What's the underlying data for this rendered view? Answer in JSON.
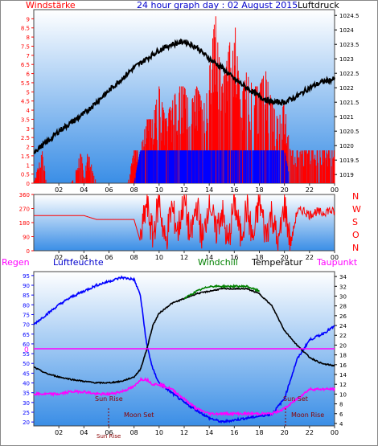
{
  "header": {
    "left_label": "Windstärke",
    "title": "24 hour graph day : 02 August 2015",
    "right_label": "Luftdruck",
    "left_color": "#ff0000",
    "title_color": "#0000cc",
    "right_color": "#000000"
  },
  "colors": {
    "panel_top": "#ffffff",
    "panel_bottom": "#3a8ee6",
    "pressure": "#000000",
    "gust": "#ff0000",
    "wind": "#0000ff",
    "winddir": "#ff0000",
    "humidity": "#0000ff",
    "temperature": "#000000",
    "windchill": "#008000",
    "dewpoint": "#ff00ff",
    "rain": "#ff00ff"
  },
  "x_ticks": [
    "02",
    "04",
    "06",
    "08",
    "10",
    "12",
    "14",
    "16",
    "18",
    "20",
    "22",
    "00"
  ],
  "dir_labels": [
    "N",
    "W",
    "S",
    "O",
    "N"
  ],
  "legend3": {
    "regen": "Regen",
    "luftfeuchte": "Luftfeuchte",
    "windchill": "Windchill",
    "temperatur": "Temperatur",
    "taupunkt": "Taupunkt"
  },
  "annotations": {
    "sun_rise": "Sun Rise",
    "sun_set": "Sun Set",
    "moon_set": "Moon Set",
    "moon_rise": "Moon Rise",
    "sun_rise_bottom": "Sun Rise",
    "rain_zero": "0"
  },
  "chart_data": [
    {
      "type": "line",
      "title": "24 hour graph day : 02 August 2015",
      "x_unit": "hour of day",
      "xlim": [
        0,
        24
      ],
      "y_left": {
        "label": "Windstärke",
        "ticks": [
          "0",
          "0.5",
          "1",
          "1.5",
          "2",
          "2.5",
          "3",
          "3.5",
          "4",
          "4.5",
          "5",
          "5.5",
          "6",
          "6.5",
          "7",
          "7.5",
          "8",
          "8.5",
          "9"
        ],
        "ylim": [
          0,
          9.5
        ]
      },
      "y_right": {
        "label": "Luftdruck",
        "ticks": [
          "1019",
          "1019.5",
          "1020",
          "1020.5",
          "1021",
          "1021.5",
          "1022",
          "1022.5",
          "1023",
          "1023.5",
          "1024",
          "1024.5"
        ],
        "ylim": [
          1018.7,
          1024.7
        ]
      },
      "series": [
        {
          "name": "Luftdruck",
          "axis": "right",
          "x": [
            0,
            1,
            2,
            3,
            4,
            5,
            6,
            7,
            8,
            9,
            10,
            11,
            12,
            13,
            14,
            15,
            16,
            17,
            18,
            19,
            20,
            21,
            22,
            23,
            24
          ],
          "values": [
            1019.8,
            1020.1,
            1020.5,
            1020.8,
            1021.1,
            1021.5,
            1021.9,
            1022.3,
            1022.7,
            1023.0,
            1023.3,
            1023.5,
            1023.6,
            1023.4,
            1023.0,
            1022.7,
            1022.3,
            1022.0,
            1021.7,
            1021.5,
            1021.5,
            1021.7,
            1022.0,
            1022.2,
            1022.3
          ]
        },
        {
          "name": "Windstärke Böen",
          "axis": "left",
          "style": "bars",
          "x": [
            0,
            0.7,
            1,
            3,
            3.8,
            4,
            4.3,
            5,
            5.5,
            7,
            7.5,
            8,
            8.5,
            9,
            9.5,
            10,
            10.5,
            11,
            11.5,
            12,
            12.5,
            13,
            13.5,
            14,
            14.5,
            15,
            15.5,
            16,
            16.5,
            17,
            17.5,
            18,
            18.5,
            19,
            19.5,
            20,
            20.5,
            21,
            21.5,
            22,
            22.5,
            23,
            23.5
          ],
          "values": [
            0,
            1.8,
            0,
            0,
            1.8,
            0,
            1.8,
            0,
            0,
            0,
            0,
            1.8,
            1.8,
            3.5,
            3.5,
            5.3,
            3.5,
            4.4,
            5.3,
            5.3,
            4.4,
            5.3,
            4.4,
            6.2,
            9.3,
            5.3,
            7.1,
            9.3,
            4.4,
            6.2,
            5.3,
            5.3,
            6.2,
            4.4,
            3.5,
            4.4,
            1.8,
            1.8,
            1.8,
            1.8,
            1.8,
            1.8,
            1.8
          ]
        },
        {
          "name": "Windstärke",
          "axis": "left",
          "style": "bars",
          "x": [
            8,
            8.5,
            9,
            9.5,
            10,
            10.5,
            11,
            11.5,
            12,
            12.5,
            13,
            13.5,
            14,
            14.5,
            15,
            15.5,
            16,
            16.5,
            17,
            17.5,
            18,
            18.5,
            19,
            19.5,
            20,
            20.5
          ],
          "values": [
            0,
            1.8,
            1.8,
            1.8,
            1.8,
            1.8,
            1.8,
            1.8,
            1.8,
            1.8,
            1.8,
            1.8,
            1.8,
            1.8,
            1.8,
            1.8,
            1.8,
            1.8,
            1.8,
            1.8,
            1.8,
            1.8,
            1.8,
            1.8,
            1.8,
            0
          ]
        }
      ]
    },
    {
      "type": "line",
      "title": "",
      "xlim": [
        0,
        24
      ],
      "y_left": {
        "label": "",
        "ticks": [
          "0",
          "90",
          "180",
          "270",
          "360"
        ],
        "ylim": [
          0,
          360
        ]
      },
      "series": [
        {
          "name": "Windrichtung",
          "x": [
            0,
            1,
            2,
            3,
            4,
            5,
            6,
            7,
            8,
            8.5,
            9,
            9.5,
            10,
            10.5,
            11,
            11.5,
            12,
            12.5,
            13,
            13.5,
            14,
            14.5,
            15,
            15.5,
            16,
            16.5,
            17,
            17.5,
            18,
            18.5,
            19,
            19.5,
            20,
            20.5,
            21,
            21.5,
            22,
            22.5,
            23,
            23.5,
            24
          ],
          "values": [
            225,
            225,
            225,
            225,
            225,
            200,
            200,
            200,
            200,
            60,
            300,
            90,
            330,
            40,
            280,
            120,
            340,
            70,
            300,
            50,
            350,
            110,
            260,
            30,
            320,
            90,
            280,
            60,
            330,
            100,
            250,
            20,
            300,
            40,
            250,
            260,
            230,
            250,
            240,
            260,
            245
          ]
        }
      ]
    },
    {
      "type": "line",
      "title": "",
      "xlim": [
        0,
        24
      ],
      "y_left": {
        "label": "Luftfeuchte",
        "ticks": [
          "20",
          "25",
          "30",
          "35",
          "40",
          "45",
          "50",
          "55",
          "60",
          "65",
          "70",
          "75",
          "80",
          "85",
          "90",
          "95"
        ],
        "ylim": [
          18,
          97
        ]
      },
      "y_right": {
        "label": "Temperatur",
        "ticks": [
          "4",
          "6",
          "8",
          "10",
          "12",
          "14",
          "16",
          "18",
          "20",
          "22",
          "24",
          "26",
          "28",
          "30",
          "32",
          "34"
        ],
        "ylim": [
          3.5,
          35
        ]
      },
      "y_rain": {
        "label": "Regen",
        "zero": "0"
      },
      "series": [
        {
          "name": "Luftfeuchte",
          "axis": "left",
          "x": [
            0,
            1,
            2,
            3,
            4,
            5,
            6,
            7,
            8,
            8.5,
            9,
            9.5,
            10,
            11,
            12,
            13,
            14,
            15,
            16,
            17,
            18,
            19,
            20,
            21,
            22,
            23,
            24
          ],
          "values": [
            70,
            75,
            80,
            84,
            87,
            90,
            92,
            94,
            93,
            85,
            60,
            47,
            40,
            35,
            30,
            26,
            22,
            20,
            21,
            22,
            23,
            24,
            32,
            52,
            62,
            65,
            69
          ]
        },
        {
          "name": "Temperatur",
          "axis": "right",
          "x": [
            0,
            1,
            2,
            3,
            4,
            5,
            6,
            7,
            8,
            8.5,
            9,
            9.5,
            10,
            11,
            12,
            13,
            14,
            15,
            16,
            17,
            18,
            19,
            20,
            21,
            22,
            23,
            24
          ],
          "values": [
            15.5,
            14.2,
            13.5,
            13,
            12.6,
            12.3,
            12.3,
            12.6,
            13.5,
            15,
            19,
            24,
            26.5,
            28.5,
            29.5,
            30.5,
            31,
            31.5,
            31.5,
            31.5,
            30.5,
            28,
            23,
            20,
            17.5,
            16.2,
            15.8
          ]
        },
        {
          "name": "Windchill",
          "axis": "right",
          "x": [
            12,
            13,
            14,
            15,
            16,
            17,
            18
          ],
          "values": [
            29.5,
            31,
            32,
            32,
            32,
            32,
            31
          ]
        },
        {
          "name": "Taupunkt",
          "axis": "right",
          "x": [
            0,
            1,
            2,
            3,
            4,
            5,
            6,
            7,
            8,
            8.5,
            9,
            9.5,
            10,
            11,
            12,
            13,
            14,
            15,
            16,
            17,
            18,
            19,
            20,
            21,
            22,
            23,
            24
          ],
          "values": [
            10,
            10,
            10,
            10.5,
            10.5,
            10,
            10,
            10.5,
            11.5,
            13,
            13,
            12,
            12,
            11,
            9,
            7,
            6,
            6,
            6,
            6,
            6,
            6,
            7,
            9,
            11,
            11,
            11
          ]
        }
      ]
    }
  ]
}
